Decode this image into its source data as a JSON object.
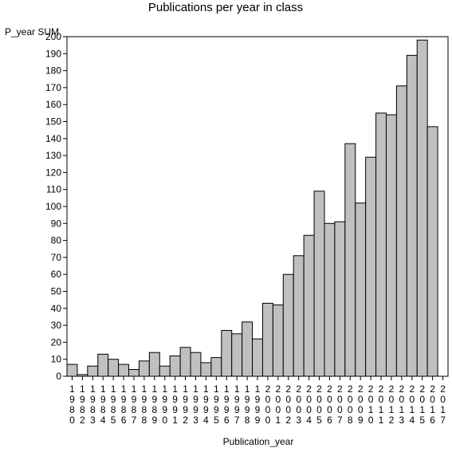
{
  "chart_data": {
    "type": "bar",
    "title": "Publications per year in class",
    "ylabel": "P_year SUM",
    "xlabel": "Publication_year",
    "ylim": [
      0,
      200
    ],
    "yticks": [
      0,
      10,
      20,
      30,
      40,
      50,
      60,
      70,
      80,
      90,
      100,
      110,
      120,
      130,
      140,
      150,
      160,
      170,
      180,
      190,
      200
    ],
    "grid": false,
    "legend": "none",
    "bar_color": "#c0c0c0",
    "categories": [
      "1980",
      "1982",
      "1983",
      "1984",
      "1985",
      "1986",
      "1987",
      "1988",
      "1989",
      "1990",
      "1991",
      "1992",
      "1993",
      "1994",
      "1995",
      "1996",
      "1997",
      "1998",
      "1999",
      "2000",
      "2001",
      "2002",
      "2003",
      "2004",
      "2005",
      "2006",
      "2007",
      "2008",
      "2009",
      "2010",
      "2011",
      "2012",
      "2013",
      "2014",
      "2015",
      "2016",
      "2017"
    ],
    "values": [
      7,
      1,
      6,
      13,
      10,
      7,
      4,
      9,
      14,
      6,
      12,
      17,
      14,
      8,
      11,
      27,
      25,
      32,
      22,
      43,
      42,
      60,
      71,
      83,
      109,
      90,
      91,
      137,
      102,
      129,
      155,
      154,
      171,
      189,
      198,
      147,
      0
    ]
  }
}
